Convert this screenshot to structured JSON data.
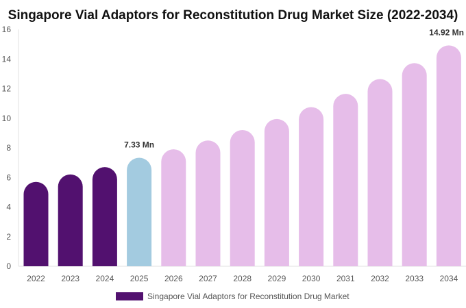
{
  "chart_data": {
    "type": "bar",
    "title": "Singapore Vial Adaptors for Reconstitution Drug Market Size (2022-2034)",
    "categories": [
      "2022",
      "2023",
      "2024",
      "2025",
      "2026",
      "2027",
      "2028",
      "2029",
      "2030",
      "2031",
      "2032",
      "2033",
      "2034"
    ],
    "series": [
      {
        "name": "Singapore Vial Adaptors for Reconstitution Drug Market",
        "values": [
          5.7,
          6.2,
          6.7,
          7.33,
          7.9,
          8.5,
          9.2,
          9.95,
          10.75,
          11.65,
          12.65,
          13.72,
          14.92
        ]
      }
    ],
    "bar_colors": [
      "#52116f",
      "#52116f",
      "#52116f",
      "#a3cbe0",
      "#e6bde9",
      "#e6bde9",
      "#e6bde9",
      "#e6bde9",
      "#e6bde9",
      "#e6bde9",
      "#e6bde9",
      "#e6bde9",
      "#e6bde9"
    ],
    "legend_color": "#52116f",
    "data_labels": [
      {
        "category": "2025",
        "text": "7.33 Mn"
      },
      {
        "category": "2034",
        "text": "14.92 Mn"
      }
    ],
    "yticks": [
      0,
      2,
      4,
      6,
      8,
      10,
      12,
      14,
      16
    ],
    "ylim": [
      0,
      16
    ],
    "grid": false,
    "legend_position": "bottom-center",
    "xlabel": "",
    "ylabel": ""
  }
}
